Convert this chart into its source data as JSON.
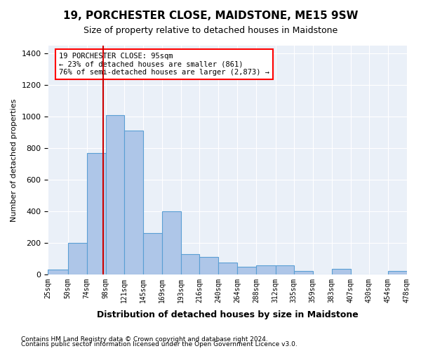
{
  "title": "19, PORCHESTER CLOSE, MAIDSTONE, ME15 9SW",
  "subtitle": "Size of property relative to detached houses in Maidstone",
  "xlabel": "Distribution of detached houses by size in Maidstone",
  "ylabel": "Number of detached properties",
  "footnote1": "Contains HM Land Registry data © Crown copyright and database right 2024.",
  "footnote2": "Contains public sector information licensed under the Open Government Licence v3.0.",
  "annotation_line1": "19 PORCHESTER CLOSE: 95sqm",
  "annotation_line2": "← 23% of detached houses are smaller (861)",
  "annotation_line3": "76% of semi-detached houses are larger (2,873) →",
  "bar_color": "#aec6e8",
  "bar_edge_color": "#5a9fd4",
  "bg_color": "#eaf0f8",
  "grid_color": "#ffffff",
  "property_line_color": "#cc0000",
  "ylim": [
    0,
    1450
  ],
  "bin_edges": [
    25,
    50,
    74,
    98,
    121,
    145,
    169,
    193,
    216,
    240,
    264,
    288,
    312,
    335,
    359,
    383,
    407,
    430,
    454,
    478
  ],
  "bar_heights": [
    30,
    200,
    770,
    1010,
    910,
    260,
    400,
    130,
    110,
    75,
    50,
    55,
    55,
    20,
    0,
    35,
    0,
    0,
    20
  ],
  "property_size": 95,
  "tick_labels": [
    "25sqm",
    "50sqm",
    "74sqm",
    "98sqm",
    "121sqm",
    "145sqm",
    "169sqm",
    "193sqm",
    "216sqm",
    "240sqm",
    "264sqm",
    "288sqm",
    "312sqm",
    "335sqm",
    "359sqm",
    "383sqm",
    "407sqm",
    "430sqm",
    "454sqm",
    "478sqm"
  ]
}
